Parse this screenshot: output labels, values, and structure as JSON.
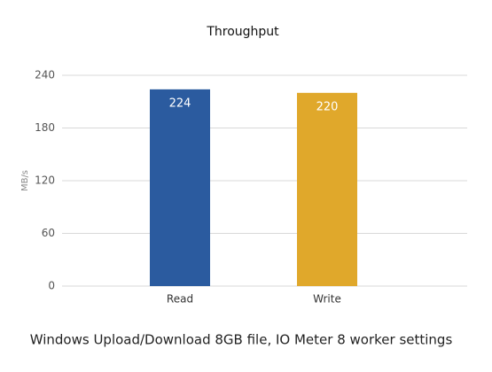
{
  "chart_data": {
    "type": "bar",
    "title": "Throughput",
    "y_label": "MB/s",
    "caption": "Windows Upload/Download 8GB file, IO Meter 8 worker settings",
    "categories": [
      "Read",
      "Write"
    ],
    "values": [
      224,
      220
    ],
    "colors": [
      "#2b5b9f",
      "#e0a82b"
    ],
    "ylim": [
      0,
      240
    ],
    "yticks": [
      0,
      60,
      120,
      180,
      240
    ],
    "grid": true
  }
}
